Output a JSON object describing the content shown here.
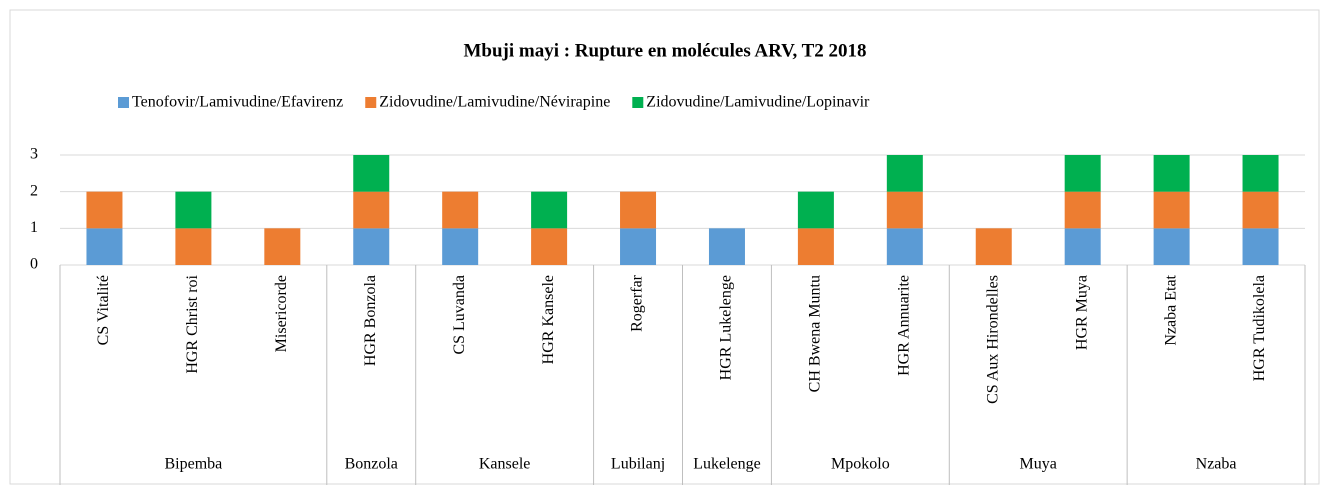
{
  "chart_data": {
    "type": "stacked_bar",
    "title": "Mbuji mayi : Rupture en molécules ARV, T2 2018",
    "categories": [
      "CS Vitalité",
      "HGR Christ roi",
      "Misericorde",
      "HGR Bonzola",
      "CS Luvanda",
      "HGR Kansele",
      "Rogerfar",
      "HGR Lukelenge",
      "CH Bwena Muntu",
      "HGR Annuarite",
      "CS Aux Hirondelles",
      "HGR Muya",
      "Nzaba Etat",
      "HGR Tudikolela"
    ],
    "groups": [
      "Bipemba",
      "Bipemba",
      "Bipemba",
      "Bonzola",
      "Kansele",
      "Kansele",
      "Lubilanj",
      "Lukelenge",
      "Mpokolo",
      "Mpokolo",
      "Muya",
      "Muya",
      "Nzaba",
      "Nzaba"
    ],
    "series": [
      {
        "name": "Tenofovir/Lamivudine/Efavirenz",
        "color": "#5b9bd5",
        "values": [
          1,
          0,
          0,
          1,
          1,
          0,
          1,
          1,
          0,
          1,
          0,
          1,
          1,
          1
        ]
      },
      {
        "name": "Zidovudine/Lamivudine/Névirapine",
        "color": "#ed7d31",
        "values": [
          1,
          1,
          1,
          1,
          1,
          1,
          1,
          0,
          1,
          1,
          1,
          1,
          1,
          1
        ]
      },
      {
        "name": "Zidovudine/Lamivudine/Lopinavir",
        "color": "#00b050",
        "values": [
          0,
          1,
          0,
          1,
          0,
          1,
          0,
          0,
          1,
          1,
          0,
          1,
          1,
          1
        ]
      }
    ],
    "ylim": [
      0,
      3
    ],
    "yticks": [
      0,
      1,
      2,
      3
    ],
    "grid": true,
    "legend": "top"
  }
}
